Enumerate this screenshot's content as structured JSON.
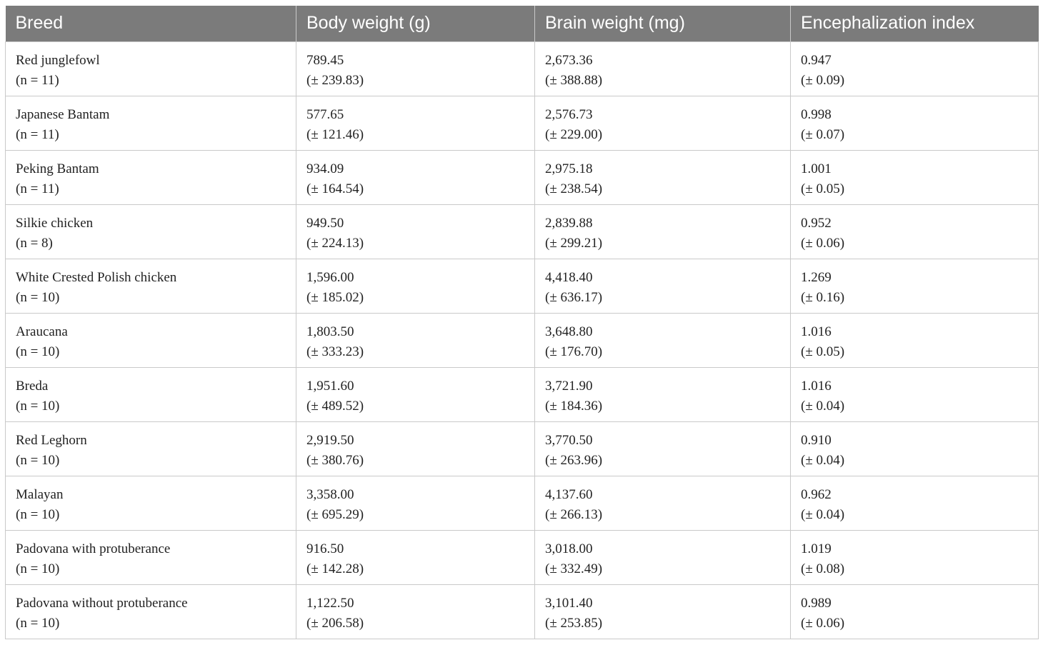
{
  "table": {
    "headers": [
      "Breed",
      "Body weight (g)",
      "Brain weight (mg)",
      "Encephalization index"
    ],
    "rows": [
      {
        "breed": "Red junglefowl",
        "n": "(n = 11)",
        "body": "789.45",
        "body_sd": "(± 239.83)",
        "brain": "2,673.36",
        "brain_sd": "(± 388.88)",
        "ei": "0.947",
        "ei_sd": "(± 0.09)"
      },
      {
        "breed": "Japanese Bantam",
        "n": "(n = 11)",
        "body": "577.65",
        "body_sd": "(± 121.46)",
        "brain": "2,576.73",
        "brain_sd": "(± 229.00)",
        "ei": "0.998",
        "ei_sd": "(± 0.07)"
      },
      {
        "breed": "Peking Bantam",
        "n": "(n = 11)",
        "body": "934.09",
        "body_sd": "(± 164.54)",
        "brain": "2,975.18",
        "brain_sd": "(± 238.54)",
        "ei": "1.001",
        "ei_sd": "(± 0.05)"
      },
      {
        "breed": "Silkie chicken",
        "n": "(n = 8)",
        "body": "949.50",
        "body_sd": "(± 224.13)",
        "brain": "2,839.88",
        "brain_sd": "(± 299.21)",
        "ei": "0.952",
        "ei_sd": "(± 0.06)"
      },
      {
        "breed": "White Crested Polish chicken",
        "n": "(n = 10)",
        "body": "1,596.00",
        "body_sd": "(± 185.02)",
        "brain": "4,418.40",
        "brain_sd": "(± 636.17)",
        "ei": "1.269",
        "ei_sd": "(± 0.16)"
      },
      {
        "breed": "Araucana",
        "n": "(n = 10)",
        "body": "1,803.50",
        "body_sd": "(± 333.23)",
        "brain": "3,648.80",
        "brain_sd": "(± 176.70)",
        "ei": "1.016",
        "ei_sd": "(± 0.05)"
      },
      {
        "breed": "Breda",
        "n": "(n = 10)",
        "body": "1,951.60",
        "body_sd": "(± 489.52)",
        "brain": "3,721.90",
        "brain_sd": "(± 184.36)",
        "ei": "1.016",
        "ei_sd": "(± 0.04)"
      },
      {
        "breed": "Red Leghorn",
        "n": "(n = 10)",
        "body": "2,919.50",
        "body_sd": "(± 380.76)",
        "brain": "3,770.50",
        "brain_sd": "(± 263.96)",
        "ei": "0.910",
        "ei_sd": "(± 0.04)"
      },
      {
        "breed": "Malayan",
        "n": "(n = 10)",
        "body": "3,358.00",
        "body_sd": "(± 695.29)",
        "brain": "4,137.60",
        "brain_sd": "(± 266.13)",
        "ei": "0.962",
        "ei_sd": "(± 0.04)"
      },
      {
        "breed": "Padovana with protuberance",
        "n": "(n = 10)",
        "body": "916.50",
        "body_sd": "(± 142.28)",
        "brain": "3,018.00",
        "brain_sd": "(± 332.49)",
        "ei": "1.019",
        "ei_sd": "(± 0.08)"
      },
      {
        "breed": "Padovana without protuberance",
        "n": "(n = 10)",
        "body": "1,122.50",
        "body_sd": "(± 206.58)",
        "brain": "3,101.40",
        "brain_sd": "(± 253.85)",
        "ei": "0.989",
        "ei_sd": "(± 0.06)"
      }
    ]
  }
}
